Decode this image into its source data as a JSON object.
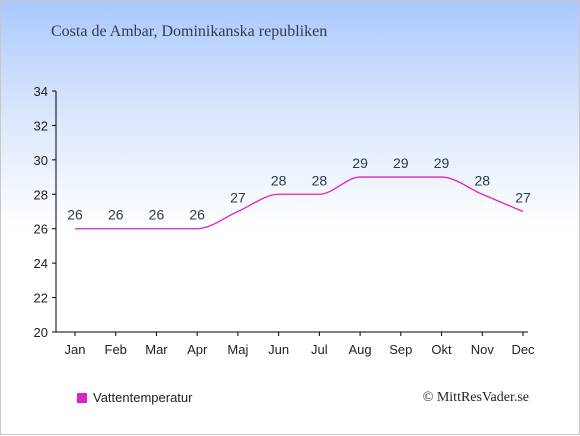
{
  "title": "Costa de Ambar, Dominikanska republiken",
  "credit": "© MittResVader.se",
  "colors": {
    "series": "#dd22cc",
    "axis": "#000000"
  },
  "chart_data": {
    "type": "line",
    "categories": [
      "Jan",
      "Feb",
      "Mar",
      "Apr",
      "Maj",
      "Jun",
      "Jul",
      "Aug",
      "Sep",
      "Okt",
      "Nov",
      "Dec"
    ],
    "series": [
      {
        "name": "Vattentemperatur",
        "values": [
          26,
          26,
          26,
          26,
          27,
          28,
          28,
          29,
          29,
          29,
          28,
          27
        ]
      }
    ],
    "ylim": [
      20,
      34
    ],
    "yticks": [
      20,
      22,
      24,
      26,
      28,
      30,
      32,
      34
    ],
    "grid": false,
    "legend": "bottom-left"
  }
}
